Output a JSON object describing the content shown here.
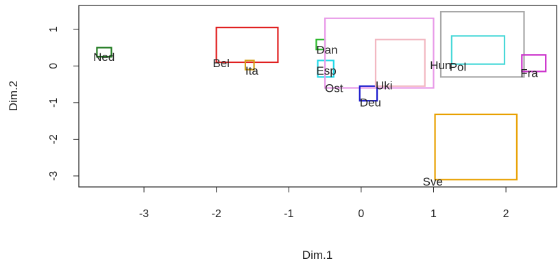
{
  "chart_data": {
    "type": "scatter",
    "title": "",
    "xlabel": "Dim.1",
    "ylabel": "Dim.2",
    "xlim": [
      -3.9,
      2.7
    ],
    "ylim": [
      -3.3,
      1.65
    ],
    "x_ticks": [
      -3,
      -2,
      -1,
      0,
      1,
      2
    ],
    "y_ticks": [
      -3,
      -2,
      -1,
      0,
      1
    ],
    "grid": false,
    "legend": "none",
    "series": [
      {
        "label": "Ned",
        "color": "#1f7a1f",
        "rect": {
          "x": [
            -3.65,
            -3.45
          ],
          "y": [
            0.25,
            0.5
          ]
        },
        "label_xy": [
          -3.7,
          0.22
        ]
      },
      {
        "label": "Bel",
        "color": "#e02020",
        "rect": {
          "x": [
            -2.0,
            -1.15
          ],
          "y": [
            0.1,
            1.05
          ]
        },
        "label_xy": [
          -2.05,
          0.05
        ]
      },
      {
        "label": "Ita",
        "color": "#d4a017",
        "rect": {
          "x": [
            -1.6,
            -1.48
          ],
          "y": [
            -0.1,
            0.15
          ]
        },
        "label_xy": [
          -1.6,
          -0.15
        ]
      },
      {
        "label": "Dan",
        "color": "#2db92d",
        "rect": {
          "x": [
            -0.62,
            -0.5
          ],
          "y": [
            0.45,
            0.72
          ]
        },
        "label_xy": [
          -0.62,
          0.42
        ]
      },
      {
        "label": "Esp",
        "color": "#20d8e8",
        "rect": {
          "x": [
            -0.6,
            -0.38
          ],
          "y": [
            -0.3,
            0.15
          ]
        },
        "label_xy": [
          -0.62,
          -0.15
        ]
      },
      {
        "label": "Ost",
        "color": "#e899e8",
        "rect": {
          "x": [
            -0.5,
            1.0
          ],
          "y": [
            -0.6,
            1.3
          ]
        },
        "label_xy": [
          -0.5,
          -0.63
        ]
      },
      {
        "label": "Deu",
        "color": "#1a1acc",
        "rect": {
          "x": [
            -0.02,
            0.22
          ],
          "y": [
            -0.95,
            -0.55
          ]
        },
        "label_xy": [
          -0.02,
          -1.02
        ]
      },
      {
        "label": "Uki",
        "color": "#f2b8c2",
        "rect": {
          "x": [
            0.2,
            0.88
          ],
          "y": [
            -0.55,
            0.72
          ]
        },
        "label_xy": [
          0.2,
          -0.55
        ]
      },
      {
        "label": "Hun",
        "color": "#a8a8a8",
        "rect": {
          "x": [
            1.1,
            2.25
          ],
          "y": [
            -0.3,
            1.48
          ]
        },
        "label_xy": [
          0.95,
          0.0
        ]
      },
      {
        "label": "Pol",
        "color": "#48d8d8",
        "rect": {
          "x": [
            1.25,
            1.98
          ],
          "y": [
            0.05,
            0.82
          ]
        },
        "label_xy": [
          1.22,
          -0.05
        ]
      },
      {
        "label": "Fra",
        "color": "#cc33cc",
        "rect": {
          "x": [
            2.22,
            2.55
          ],
          "y": [
            -0.15,
            0.3
          ]
        },
        "label_xy": [
          2.2,
          -0.22
        ]
      },
      {
        "label": "Sve",
        "color": "#e8a000",
        "rect": {
          "x": [
            1.02,
            2.15
          ],
          "y": [
            -3.1,
            -1.32
          ]
        },
        "label_xy": [
          0.85,
          -3.18
        ]
      }
    ]
  }
}
